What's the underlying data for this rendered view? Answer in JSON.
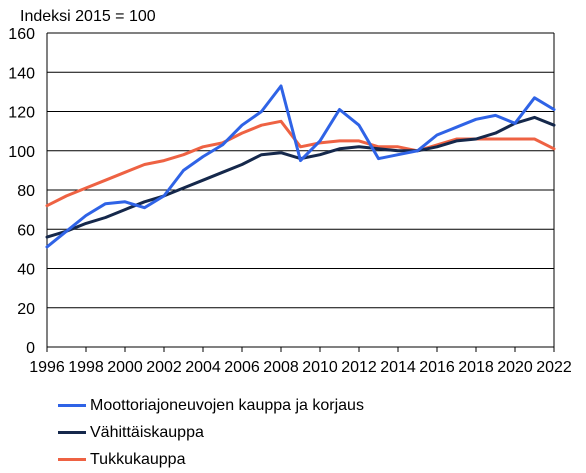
{
  "chart_data": {
    "type": "line",
    "ylabel": "Indeksi 2015 = 100",
    "ylim": [
      0,
      160
    ],
    "y_ticks": [
      0,
      20,
      40,
      60,
      80,
      100,
      120,
      140,
      160
    ],
    "x_ticks": [
      1996,
      1998,
      2000,
      2002,
      2004,
      2006,
      2008,
      2010,
      2012,
      2014,
      2016,
      2018,
      2020,
      2022
    ],
    "grid": true,
    "legend_position": "bottom",
    "x": [
      1996,
      1997,
      1998,
      1999,
      2000,
      2001,
      2002,
      2003,
      2004,
      2005,
      2006,
      2007,
      2008,
      2009,
      2010,
      2011,
      2012,
      2013,
      2014,
      2015,
      2016,
      2017,
      2018,
      2019,
      2020,
      2021,
      2022
    ],
    "series": [
      {
        "name": "Moottoriajoneuvojen kauppa ja korjaus",
        "color": "#2f63e6",
        "values": [
          51,
          59,
          67,
          73,
          74,
          71,
          77,
          90,
          97,
          103,
          113,
          120,
          133,
          95,
          105,
          121,
          113,
          96,
          98,
          100,
          108,
          112,
          116,
          118,
          114,
          127,
          121
        ]
      },
      {
        "name": "Vähittäiskauppa",
        "color": "#15284b",
        "values": [
          56,
          59,
          63,
          66,
          70,
          74,
          77,
          81,
          85,
          89,
          93,
          98,
          99,
          96,
          98,
          101,
          102,
          101,
          100,
          100,
          102,
          105,
          106,
          109,
          114,
          117,
          113
        ]
      },
      {
        "name": "Tukkukauppa",
        "color": "#ee6243",
        "values": [
          72,
          77,
          81,
          85,
          89,
          93,
          95,
          98,
          102,
          104,
          109,
          113,
          115,
          102,
          104,
          105,
          105,
          102,
          102,
          100,
          103,
          106,
          106,
          106,
          106,
          106,
          101
        ]
      }
    ]
  }
}
